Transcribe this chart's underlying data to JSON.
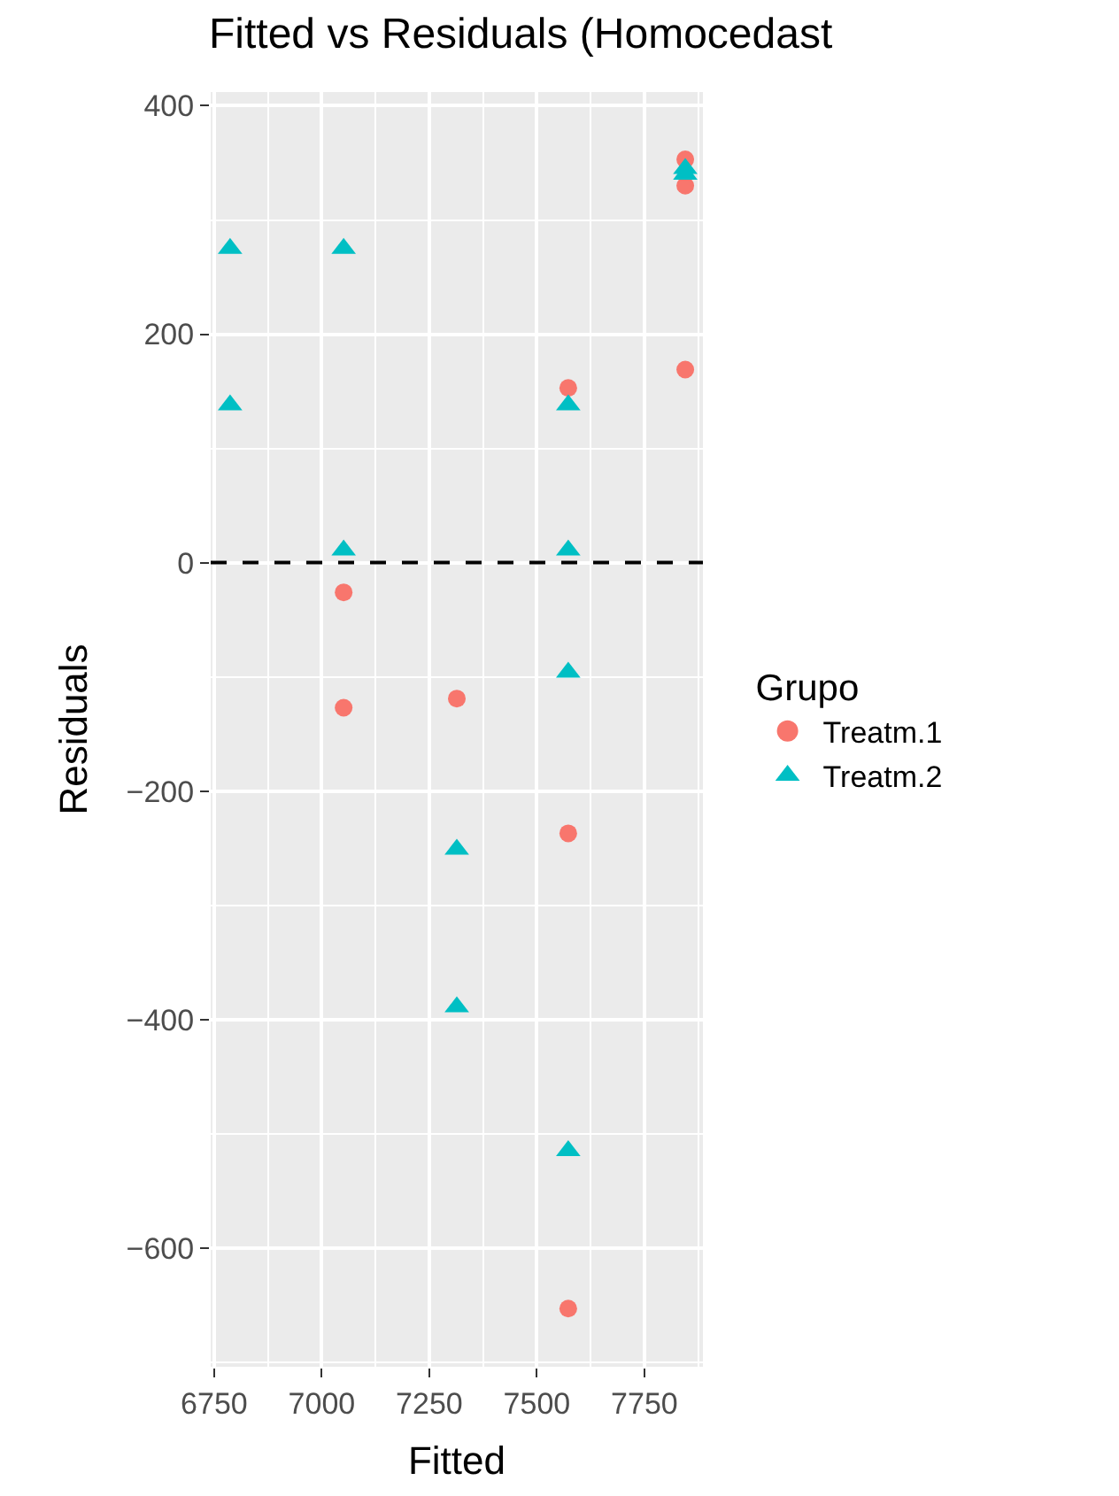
{
  "chart_data": {
    "type": "scatter",
    "title": "Fitted vs Residuals (Homocedast",
    "xlabel": "Fitted",
    "ylabel": "Residuals",
    "legend_title": "Grupo",
    "series": [
      {
        "name": "Treatm.1",
        "color": "#f8766d",
        "marker": "circle",
        "x": [
          7051,
          7051,
          7314,
          7573,
          7573,
          7573,
          7845,
          7845,
          7845
        ],
        "values": [
          -26,
          -127,
          -119,
          153,
          -237,
          -653,
          353,
          330,
          169
        ]
      },
      {
        "name": "Treatm.2",
        "color": "#00bfc4",
        "marker": "triangle",
        "x": [
          6787,
          6787,
          7051,
          7051,
          7314,
          7314,
          7573,
          7573,
          7573,
          7573,
          7845,
          7845
        ],
        "values": [
          275,
          138,
          275,
          11,
          -251,
          -389,
          138,
          11,
          -96,
          -515,
          345,
          340
        ]
      }
    ],
    "xlim": [
      6742,
      7886
    ],
    "xticks": [
      6750,
      7000,
      7250,
      7500,
      7750
    ],
    "ylim": [
      -704,
      412
    ],
    "yticks": [
      {
        "value": -600,
        "label": "−600"
      },
      {
        "value": -400,
        "label": "−400"
      },
      {
        "value": -200,
        "label": "−200"
      },
      0,
      200,
      400
    ],
    "ref_lines": [
      {
        "axis": "y",
        "value": 0,
        "label": null,
        "color": "#000000",
        "line_style": "dashed"
      }
    ],
    "grid": true,
    "legend": "right"
  }
}
